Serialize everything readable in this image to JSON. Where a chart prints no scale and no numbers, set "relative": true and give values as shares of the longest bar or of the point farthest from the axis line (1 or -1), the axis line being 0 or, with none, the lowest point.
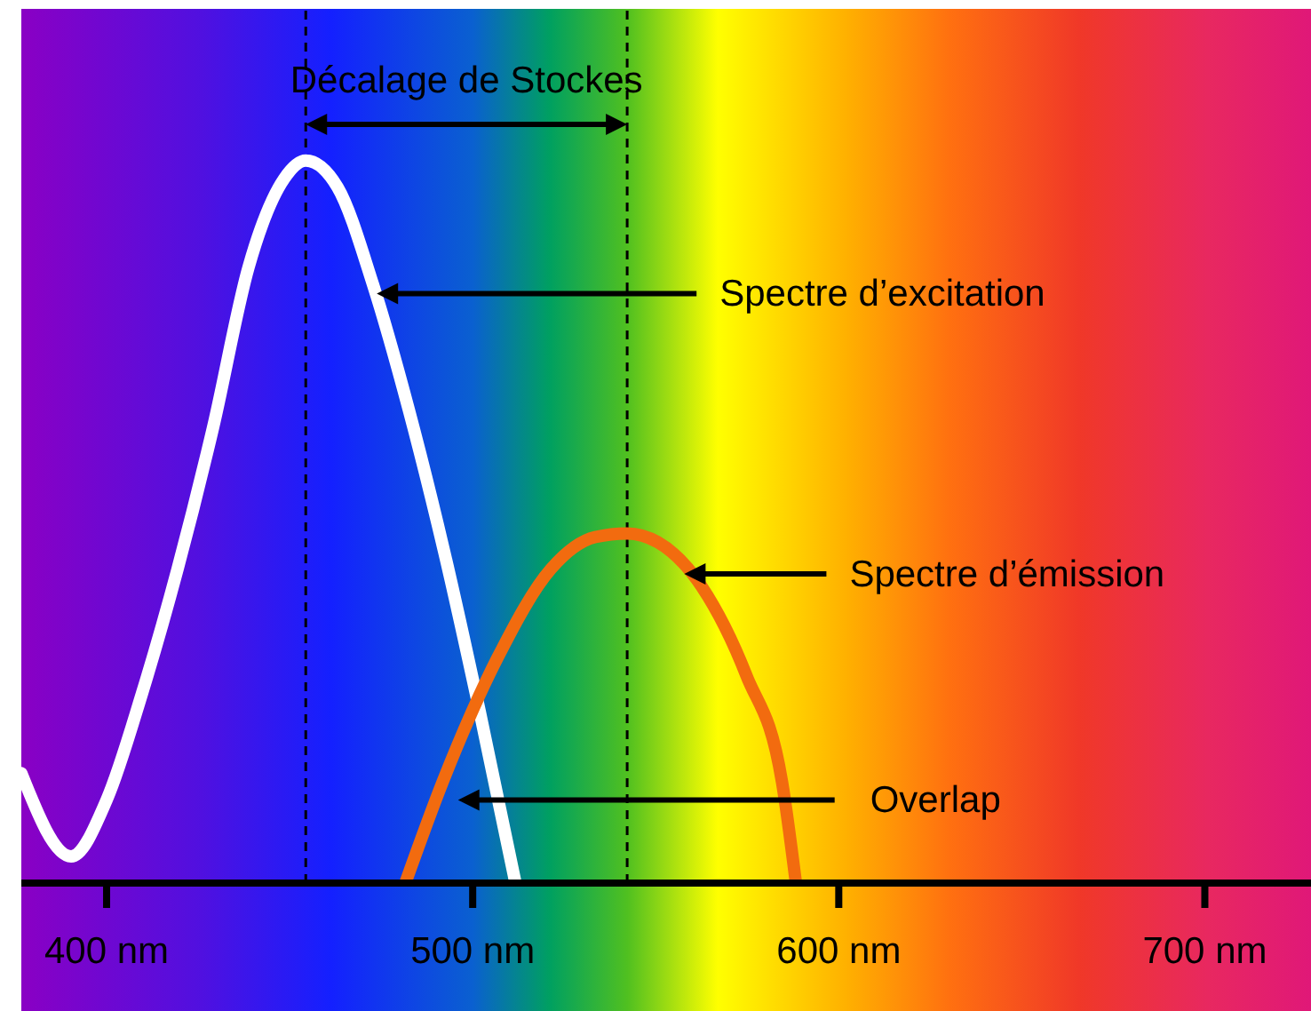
{
  "chart_data": {
    "type": "line",
    "relative": true,
    "xlim": [
      376.7,
      729
    ],
    "xticks": [
      {
        "value": 400,
        "label": "400 nm"
      },
      {
        "value": 500,
        "label": "500 nm"
      },
      {
        "value": 600,
        "label": "600 nm"
      },
      {
        "value": 700,
        "label": "700 nm"
      }
    ],
    "series": [
      {
        "name": "Spectre d’excitation",
        "color": "#ffffff",
        "x": [
          376.7,
          390.3,
          400,
          409.7,
          419.4,
          429.1,
          438.8,
          448.5,
          454.4,
          463.1,
          472.8,
          482.5,
          492.2,
          501.9,
          511.7
        ],
        "values": [
          0.152,
          0.037,
          0.115,
          0.263,
          0.435,
          0.631,
          0.853,
          0.975,
          1,
          0.963,
          0.828,
          0.656,
          0.459,
          0.238,
          0
        ]
      },
      {
        "name": "Spectre d’émission",
        "color": "#f26b0f",
        "x": [
          481.6,
          491.8,
          506.8,
          521.4,
          533.5,
          542.2,
          550.5,
          562.6,
          574.8,
          584.5,
          588.3
        ],
        "values": [
          0,
          0.14,
          0.312,
          0.435,
          0.479,
          0.484,
          0.472,
          0.41,
          0.287,
          0.14,
          0
        ]
      }
    ],
    "ref_lines": [
      {
        "axis": "x",
        "value": 454.4,
        "color": "#000000",
        "line_style": "dashed"
      },
      {
        "axis": "x",
        "value": 542.2,
        "color": "#000000",
        "line_style": "dashed"
      }
    ],
    "annotations": [
      "Décalage de Stockes",
      "Overlap"
    ],
    "marker": "none",
    "line_style": "solid"
  }
}
